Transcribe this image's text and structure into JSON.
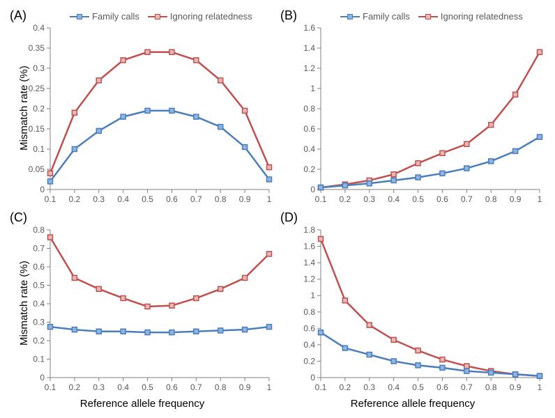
{
  "global": {
    "series_names": {
      "family": "Family calls",
      "ignore": "Ignoring relatedness"
    },
    "colors": {
      "family_line": "#4a7ebb",
      "family_marker_fill": "#8db4e2",
      "family_marker_stroke": "#4a7ebb",
      "ignore_line": "#c0504d",
      "ignore_marker_fill": "#e6b8b7",
      "ignore_marker_stroke": "#c0504d",
      "axis": "#808080",
      "tick_text": "#595959",
      "background": "#ffffff",
      "grid": "#d9d9d9"
    },
    "marker_size": 7,
    "line_width": 2.5,
    "x_values": [
      0.1,
      0.2,
      0.3,
      0.4,
      0.5,
      0.6,
      0.7,
      0.8,
      0.9,
      1.0
    ],
    "x_label": "Reference allele frequency",
    "y_label": "Mismatch rate (%)",
    "label_fontsize": 15,
    "tick_fontsize": 12,
    "panel_label_fontsize": 18
  },
  "panels": {
    "A": {
      "label": "(A)",
      "ylim": [
        0,
        0.4
      ],
      "ytick_step": 0.05,
      "y_ticks": [
        0,
        0.05,
        0.1,
        0.15,
        0.2,
        0.25,
        0.3,
        0.35,
        0.4
      ],
      "show_xlabel": false,
      "show_ylabel": true,
      "show_legend": true,
      "family": [
        0.02,
        0.1,
        0.145,
        0.18,
        0.195,
        0.195,
        0.18,
        0.155,
        0.105,
        0.025
      ],
      "ignore": [
        0.04,
        0.19,
        0.27,
        0.32,
        0.34,
        0.34,
        0.32,
        0.27,
        0.195,
        0.055
      ]
    },
    "B": {
      "label": "(B)",
      "ylim": [
        0,
        1.6
      ],
      "ytick_step": 0.2,
      "y_ticks": [
        0,
        0.2,
        0.4,
        0.6,
        0.8,
        1.0,
        1.2,
        1.4,
        1.6
      ],
      "show_xlabel": false,
      "show_ylabel": false,
      "show_legend": true,
      "family": [
        0.02,
        0.04,
        0.06,
        0.09,
        0.12,
        0.16,
        0.21,
        0.28,
        0.38,
        0.52
      ],
      "ignore": [
        0.02,
        0.05,
        0.09,
        0.15,
        0.26,
        0.36,
        0.45,
        0.64,
        0.94,
        1.36
      ]
    },
    "C": {
      "label": "(C)",
      "ylim": [
        0,
        0.8
      ],
      "ytick_step": 0.1,
      "y_ticks": [
        0,
        0.1,
        0.2,
        0.3,
        0.4,
        0.5,
        0.6,
        0.7,
        0.8
      ],
      "show_xlabel": true,
      "show_ylabel": true,
      "show_legend": false,
      "family": [
        0.275,
        0.26,
        0.25,
        0.25,
        0.245,
        0.245,
        0.25,
        0.255,
        0.26,
        0.275
      ],
      "ignore": [
        0.76,
        0.54,
        0.48,
        0.43,
        0.385,
        0.39,
        0.43,
        0.48,
        0.54,
        0.67
      ]
    },
    "D": {
      "label": "(D)",
      "ylim": [
        0,
        1.8
      ],
      "ytick_step": 0.2,
      "y_ticks": [
        0,
        0.2,
        0.4,
        0.6,
        0.8,
        1.0,
        1.2,
        1.4,
        1.6,
        1.8
      ],
      "show_xlabel": true,
      "show_ylabel": false,
      "show_legend": false,
      "family": [
        0.55,
        0.36,
        0.28,
        0.2,
        0.15,
        0.12,
        0.08,
        0.06,
        0.04,
        0.02
      ],
      "ignore": [
        1.69,
        0.94,
        0.64,
        0.46,
        0.33,
        0.22,
        0.14,
        0.08,
        0.04,
        0.02
      ]
    }
  }
}
